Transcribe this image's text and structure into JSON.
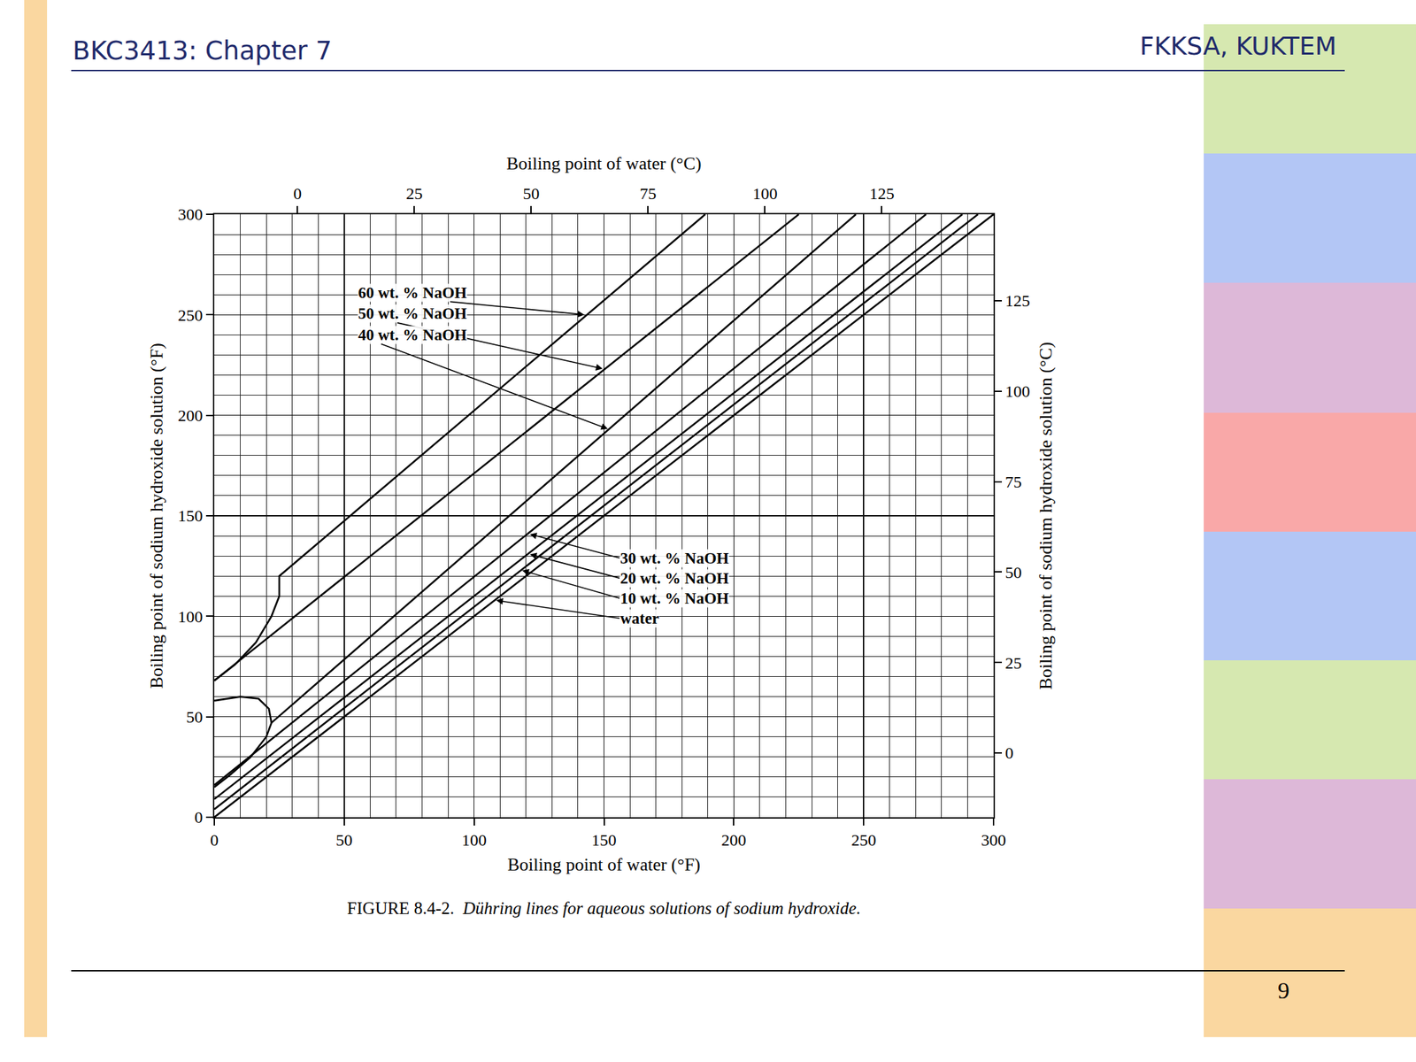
{
  "header": {
    "left": "BKC3413: Chapter 7",
    "right": "FKKSA, KUKTEM",
    "page": "9"
  },
  "chart_data": {
    "type": "line",
    "title": "FIGURE 8.4-2. Dühring lines for aqueous solutions of sodium hydroxide.",
    "xlabel": "Boiling point of water (°F)",
    "ylabel": "Boiling point of sodium hydroxide solution (°F)",
    "x2label": "Boiling point of water (°C)",
    "y2label": "Boiling point of sodium hydroxide solution (°C)",
    "xlim": [
      0,
      300
    ],
    "ylim": [
      0,
      300
    ],
    "xticks": [
      0,
      50,
      100,
      150,
      200,
      250,
      300
    ],
    "yticks": [
      0,
      50,
      100,
      150,
      200,
      250,
      300
    ],
    "x2lim": [
      -17.78,
      148.89
    ],
    "y2lim": [
      -17.78,
      148.89
    ],
    "x2ticks": [
      0,
      25,
      50,
      75,
      100,
      125
    ],
    "y2ticks": [
      0,
      25,
      50,
      75,
      100,
      125
    ],
    "grid": true,
    "series": [
      {
        "name": "60 wt. % NaOH",
        "color": "#000000",
        "x": [
          0,
          8,
          16,
          22,
          25,
          25,
          189
        ],
        "values": [
          68,
          76,
          87,
          100,
          110,
          120,
          300
        ]
      },
      {
        "name": "50 wt. % NaOH",
        "color": "#000000",
        "x": [
          0,
          225
        ],
        "values": [
          68,
          300
        ]
      },
      {
        "name": "40 wt. % NaOH",
        "color": "#000000",
        "x": [
          0,
          10,
          17,
          21,
          22,
          20,
          14,
          6,
          0,
          null,
          22,
          247
        ],
        "values": [
          58,
          60,
          59,
          54,
          47,
          40,
          30,
          21,
          15,
          null,
          47,
          300
        ]
      },
      {
        "name": "30 wt. % NaOH",
        "color": "#000000",
        "x": [
          0,
          274
        ],
        "values": [
          16,
          300
        ]
      },
      {
        "name": "20 wt. % NaOH",
        "color": "#000000",
        "x": [
          0,
          288
        ],
        "values": [
          9,
          300
        ]
      },
      {
        "name": "10 wt. % NaOH",
        "color": "#000000",
        "x": [
          0,
          294
        ],
        "values": [
          4,
          300
        ]
      },
      {
        "name": "water",
        "color": "#000000",
        "x": [
          0,
          300
        ],
        "values": [
          0,
          300
        ]
      }
    ],
    "annotations": [
      {
        "text": "60 wt. % NaOH",
        "x": 55,
        "y": 261,
        "arrow_x": 143,
        "arrow_y": 250
      },
      {
        "text": "50 wt. % NaOH",
        "x": 55,
        "y": 250.5,
        "arrow_x": 150,
        "arrow_y": 223
      },
      {
        "text": "40 wt. % NaOH",
        "x": 55,
        "y": 240,
        "arrow_x": 152,
        "arrow_y": 193
      },
      {
        "text": "30 wt. % NaOH",
        "x": 156,
        "y": 129,
        "arrow_x": 121,
        "arrow_y": 141
      },
      {
        "text": "20 wt. % NaOH",
        "x": 156,
        "y": 119,
        "arrow_x": 121,
        "arrow_y": 131
      },
      {
        "text": "10 wt. % NaOH",
        "x": 156,
        "y": 109,
        "arrow_x": 118,
        "arrow_y": 123
      },
      {
        "text": "water",
        "x": 156,
        "y": 99,
        "arrow_x": 108,
        "arrow_y": 108
      }
    ]
  }
}
